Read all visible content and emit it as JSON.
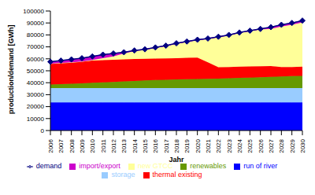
{
  "chart_data": {
    "type": "area",
    "stacked": true,
    "grid": false,
    "legend": "bottom",
    "x_label": "Jahr",
    "y_label": "production/demand [GWh]",
    "categories": [
      "2006",
      "2007",
      "2008",
      "2009",
      "2010",
      "2011",
      "2012",
      "2013",
      "2014",
      "2015",
      "2016",
      "2017",
      "2018",
      "2019",
      "2020",
      "2021",
      "2022",
      "2023",
      "2024",
      "2025",
      "2026",
      "2027",
      "2028",
      "2029",
      "2030"
    ],
    "ylim": [
      0,
      100000
    ],
    "yticks": [
      0,
      10000,
      20000,
      30000,
      40000,
      50000,
      60000,
      70000,
      80000,
      90000,
      100000
    ],
    "series": [
      {
        "name": "run of river",
        "type": "area",
        "color": "#0000ff",
        "values": [
          23500,
          23500,
          23500,
          23500,
          23500,
          23500,
          23500,
          23500,
          23500,
          23500,
          23500,
          23500,
          23500,
          23500,
          23500,
          23500,
          23500,
          23500,
          23500,
          23500,
          23500,
          23500,
          23500,
          23500,
          23500
        ]
      },
      {
        "name": "storage",
        "type": "area",
        "color": "#99ccff",
        "values": [
          12000,
          12000,
          12000,
          12000,
          12000,
          12000,
          12000,
          12000,
          12000,
          12000,
          12000,
          12000,
          12000,
          12000,
          12000,
          12000,
          12000,
          12000,
          12000,
          12000,
          12000,
          12000,
          12000,
          12000,
          12000
        ]
      },
      {
        "name": "renewables",
        "type": "area",
        "color": "#669900",
        "values": [
          3000,
          3300,
          3600,
          4000,
          4400,
          4800,
          5200,
          5600,
          6000,
          6400,
          6800,
          7000,
          7200,
          7400,
          7600,
          7800,
          8000,
          8200,
          8500,
          8800,
          9100,
          9400,
          9700,
          10000,
          10300
        ]
      },
      {
        "name": "thermal existing",
        "type": "area",
        "color": "#ff0000",
        "values": [
          17500,
          17700,
          17900,
          18300,
          18600,
          18500,
          18500,
          18400,
          18300,
          18100,
          17900,
          17900,
          17900,
          17900,
          17900,
          13700,
          9500,
          9500,
          9400,
          9300,
          9200,
          9100,
          8000,
          7700,
          7600
        ]
      },
      {
        "name": "new GTCC",
        "type": "area",
        "color": "#ffff99",
        "values": [
          0,
          0,
          0,
          0,
          500,
          1700,
          2800,
          5000,
          6700,
          7500,
          8800,
          10100,
          11900,
          13200,
          14500,
          19500,
          25000,
          26300,
          28100,
          29400,
          30700,
          31000,
          33800,
          35300,
          37100
        ]
      },
      {
        "name": "import/export",
        "type": "area",
        "color": "#cc00cc",
        "values": [
          1500,
          2000,
          2500,
          2700,
          3000,
          3000,
          2500,
          1000,
          500,
          500,
          500,
          500,
          500,
          500,
          500,
          500,
          500,
          500,
          500,
          500,
          500,
          1500,
          1500,
          1500,
          1500
        ]
      },
      {
        "name": "demand",
        "type": "line",
        "color": "#000080",
        "marker": "diamond",
        "values": [
          57500,
          58500,
          59500,
          60500,
          62000,
          63500,
          64500,
          65500,
          67000,
          68000,
          69500,
          71000,
          73000,
          74500,
          76000,
          77000,
          78500,
          80000,
          82000,
          83500,
          85000,
          86500,
          88500,
          90000,
          92000
        ]
      }
    ]
  }
}
